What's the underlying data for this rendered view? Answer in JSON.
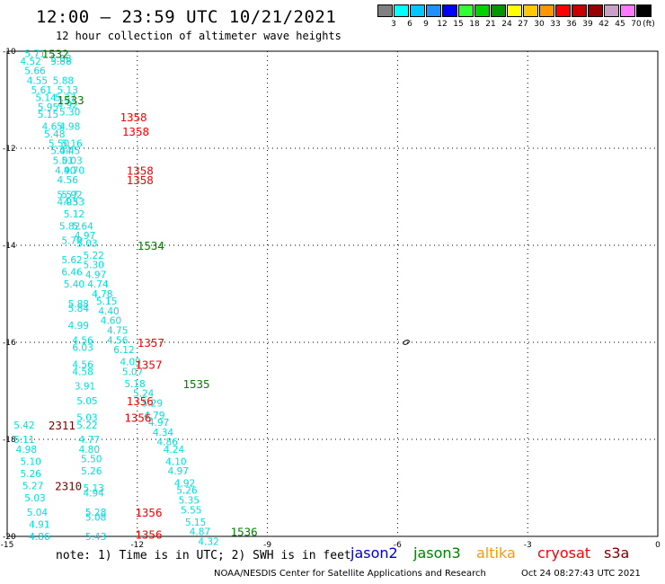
{
  "header": {
    "title": "12:00 – 23:59 UTC 10/21/2021",
    "subtitle": "12 hour collection of altimeter wave heights"
  },
  "scale": {
    "unit_label": "(ft)",
    "bins": [
      {
        "label": "",
        "color": "#808080"
      },
      {
        "label": "3",
        "color": "#00ffff"
      },
      {
        "label": "6",
        "color": "#00c8ff"
      },
      {
        "label": "9",
        "color": "#1e90ff"
      },
      {
        "label": "12",
        "color": "#0000ff"
      },
      {
        "label": "15",
        "color": "#32ff32"
      },
      {
        "label": "18",
        "color": "#00d200"
      },
      {
        "label": "21",
        "color": "#009600"
      },
      {
        "label": "24",
        "color": "#ffff00"
      },
      {
        "label": "27",
        "color": "#ffc800"
      },
      {
        "label": "30",
        "color": "#ff9600"
      },
      {
        "label": "33",
        "color": "#ff0000"
      },
      {
        "label": "36",
        "color": "#c80000"
      },
      {
        "label": "39",
        "color": "#960000"
      },
      {
        "label": "42",
        "color": "#c8a0c8"
      },
      {
        "label": "45",
        "color": "#ff78ff"
      },
      {
        "label": "70",
        "color": "#000000"
      }
    ]
  },
  "footer": {
    "note": "note: 1) Time is in UTC; 2) SWH is in feet",
    "credit": "NOAA/NESDIS Center for Satellite Applications and Research",
    "timestamp": "Oct 24 08:27:43 UTC 2021"
  },
  "satellites": [
    {
      "name": "jason2",
      "color": "#0000d0"
    },
    {
      "name": "jason3",
      "color": "#008000"
    },
    {
      "name": "altika",
      "color": "#ff9900"
    },
    {
      "name": "cryosat",
      "color": "#ff0000"
    },
    {
      "name": "s3a",
      "color": "#800000"
    }
  ],
  "chart_data": {
    "type": "scatter",
    "xlim": [
      -15,
      0
    ],
    "ylim": [
      -20,
      -10
    ],
    "x_ticks": [
      "-15",
      "-12",
      "-9",
      "-6",
      "-3",
      "0"
    ],
    "y_ticks": [
      "-10",
      "-12",
      "-14",
      "-16",
      "-18",
      "-20"
    ],
    "grid": true,
    "swh_color": "#00e0e0",
    "swh_points": [
      {
        "x": -14.6,
        "y": -10.05,
        "v": "5.71"
      },
      {
        "x": -14.0,
        "y": -10.15,
        "v": "5.03"
      },
      {
        "x": -14.7,
        "y": -10.2,
        "v": "4.52"
      },
      {
        "x": -14.0,
        "y": -10.2,
        "v": "5.88"
      },
      {
        "x": -14.6,
        "y": -10.4,
        "v": "5.66"
      },
      {
        "x": -14.55,
        "y": -10.6,
        "v": "4.55"
      },
      {
        "x": -13.95,
        "y": -10.6,
        "v": "5.88"
      },
      {
        "x": -14.45,
        "y": -10.8,
        "v": "5.61"
      },
      {
        "x": -13.85,
        "y": -10.8,
        "v": "5.13"
      },
      {
        "x": -14.35,
        "y": -10.95,
        "v": "5.14"
      },
      {
        "x": -13.9,
        "y": -10.95,
        "v": "5.37"
      },
      {
        "x": -14.3,
        "y": -11.15,
        "v": "5.95"
      },
      {
        "x": -13.85,
        "y": -11.1,
        "v": "4.92"
      },
      {
        "x": -14.3,
        "y": -11.3,
        "v": "5.15"
      },
      {
        "x": -13.8,
        "y": -11.25,
        "v": "5.30"
      },
      {
        "x": -14.2,
        "y": -11.55,
        "v": "4.65"
      },
      {
        "x": -13.8,
        "y": -11.55,
        "v": "4.98"
      },
      {
        "x": -14.15,
        "y": -11.7,
        "v": "5.48"
      },
      {
        "x": -14.05,
        "y": -11.9,
        "v": "5.50"
      },
      {
        "x": -13.75,
        "y": -11.9,
        "v": "5.16"
      },
      {
        "x": -14.0,
        "y": -12.05,
        "v": "5.04"
      },
      {
        "x": -13.8,
        "y": -12.05,
        "v": "4.45"
      },
      {
        "x": -13.95,
        "y": -12.25,
        "v": "5.01"
      },
      {
        "x": -13.75,
        "y": -12.25,
        "v": "5.03"
      },
      {
        "x": -13.9,
        "y": -12.45,
        "v": "4.90"
      },
      {
        "x": -13.7,
        "y": -12.45,
        "v": "4.70"
      },
      {
        "x": -13.85,
        "y": -12.65,
        "v": "4.56"
      },
      {
        "x": -13.85,
        "y": -12.95,
        "v": "5.57"
      },
      {
        "x": -13.75,
        "y": -12.95,
        "v": "5.92"
      },
      {
        "x": -13.85,
        "y": -13.1,
        "v": "4.93"
      },
      {
        "x": -13.7,
        "y": -13.1,
        "v": "4.53"
      },
      {
        "x": -13.7,
        "y": -13.35,
        "v": "5.12"
      },
      {
        "x": -13.8,
        "y": -13.6,
        "v": "5.82"
      },
      {
        "x": -13.5,
        "y": -13.6,
        "v": "5.64"
      },
      {
        "x": -13.45,
        "y": -13.8,
        "v": "4.97"
      },
      {
        "x": -13.75,
        "y": -13.9,
        "v": "5.79"
      },
      {
        "x": -13.4,
        "y": -13.95,
        "v": "5.03"
      },
      {
        "x": -13.25,
        "y": -14.2,
        "v": "5.22"
      },
      {
        "x": -13.75,
        "y": -14.3,
        "v": "5.62"
      },
      {
        "x": -13.25,
        "y": -14.4,
        "v": "5.30"
      },
      {
        "x": -13.75,
        "y": -14.55,
        "v": "6.46"
      },
      {
        "x": -13.2,
        "y": -14.6,
        "v": "4.97"
      },
      {
        "x": -13.7,
        "y": -14.8,
        "v": "5.40"
      },
      {
        "x": -13.15,
        "y": -14.8,
        "v": "4.74"
      },
      {
        "x": -13.05,
        "y": -15.0,
        "v": "4.78"
      },
      {
        "x": -13.6,
        "y": -15.2,
        "v": "5.88"
      },
      {
        "x": -12.95,
        "y": -15.15,
        "v": "5.15"
      },
      {
        "x": -13.6,
        "y": -15.3,
        "v": "5.84"
      },
      {
        "x": -12.9,
        "y": -15.35,
        "v": "4.40"
      },
      {
        "x": -12.85,
        "y": -15.55,
        "v": "4.60"
      },
      {
        "x": -13.6,
        "y": -15.65,
        "v": "4.99"
      },
      {
        "x": -12.7,
        "y": -15.75,
        "v": "4.75"
      },
      {
        "x": -13.5,
        "y": -15.95,
        "v": "4.56"
      },
      {
        "x": -12.7,
        "y": -15.95,
        "v": "4.56"
      },
      {
        "x": -13.5,
        "y": -16.1,
        "v": "6.03"
      },
      {
        "x": -12.55,
        "y": -16.15,
        "v": "6.12"
      },
      {
        "x": -12.4,
        "y": -16.4,
        "v": "4.09"
      },
      {
        "x": -13.5,
        "y": -16.45,
        "v": "4.56"
      },
      {
        "x": -13.5,
        "y": -16.6,
        "v": "4.58"
      },
      {
        "x": -12.35,
        "y": -16.6,
        "v": "5.07"
      },
      {
        "x": -13.45,
        "y": -16.9,
        "v": "3.91"
      },
      {
        "x": -12.3,
        "y": -16.85,
        "v": "5.18"
      },
      {
        "x": -12.1,
        "y": -17.05,
        "v": "5.24"
      },
      {
        "x": -13.4,
        "y": -17.2,
        "v": "5.05"
      },
      {
        "x": -11.9,
        "y": -17.25,
        "v": "5.29"
      },
      {
        "x": -11.85,
        "y": -17.5,
        "v": "4.79"
      },
      {
        "x": -13.4,
        "y": -17.55,
        "v": "5.03"
      },
      {
        "x": -11.75,
        "y": -17.65,
        "v": "4.97"
      },
      {
        "x": -13.4,
        "y": -17.7,
        "v": "5.22"
      },
      {
        "x": -11.65,
        "y": -17.85,
        "v": "4.34"
      },
      {
        "x": -14.85,
        "y": -17.7,
        "v": "5.42"
      },
      {
        "x": -14.85,
        "y": -18.0,
        "v": "5.11"
      },
      {
        "x": -13.35,
        "y": -18.0,
        "v": "4.77"
      },
      {
        "x": -11.55,
        "y": -18.05,
        "v": "4.86"
      },
      {
        "x": -14.8,
        "y": -18.2,
        "v": "4.98"
      },
      {
        "x": -13.35,
        "y": -18.2,
        "v": "4.80"
      },
      {
        "x": -11.4,
        "y": -18.2,
        "v": "4.24"
      },
      {
        "x": -14.7,
        "y": -18.45,
        "v": "5.10"
      },
      {
        "x": -13.3,
        "y": -18.4,
        "v": "5.50"
      },
      {
        "x": -11.35,
        "y": -18.45,
        "v": "4.10"
      },
      {
        "x": -14.7,
        "y": -18.7,
        "v": "5.26"
      },
      {
        "x": -13.3,
        "y": -18.65,
        "v": "5.26"
      },
      {
        "x": -11.3,
        "y": -18.65,
        "v": "4.97"
      },
      {
        "x": -11.15,
        "y": -18.9,
        "v": "4.92"
      },
      {
        "x": -14.65,
        "y": -18.95,
        "v": "5.27"
      },
      {
        "x": -13.25,
        "y": -19.0,
        "v": "5.13"
      },
      {
        "x": -11.1,
        "y": -19.05,
        "v": "5.26"
      },
      {
        "x": -13.25,
        "y": -19.1,
        "v": "4.94"
      },
      {
        "x": -14.6,
        "y": -19.2,
        "v": "5.03"
      },
      {
        "x": -11.05,
        "y": -19.25,
        "v": "5.35"
      },
      {
        "x": -14.55,
        "y": -19.5,
        "v": "5.04"
      },
      {
        "x": -11.0,
        "y": -19.45,
        "v": "5.55"
      },
      {
        "x": -13.2,
        "y": -19.5,
        "v": "5.28"
      },
      {
        "x": -13.2,
        "y": -19.6,
        "v": "5.08"
      },
      {
        "x": -14.5,
        "y": -19.75,
        "v": "4.91"
      },
      {
        "x": -10.9,
        "y": -19.7,
        "v": "5.15"
      },
      {
        "x": -10.8,
        "y": -19.9,
        "v": "4.87"
      },
      {
        "x": -14.5,
        "y": -20.0,
        "v": "4.86"
      },
      {
        "x": -13.2,
        "y": -20.0,
        "v": "5.43"
      },
      {
        "x": -10.6,
        "y": -20.1,
        "v": "4.32"
      }
    ],
    "time_labels": [
      {
        "x": -14.2,
        "y": -10.05,
        "t": "1532",
        "sat": "jason3"
      },
      {
        "x": -13.85,
        "y": -11.0,
        "t": "1533",
        "sat": "jason3"
      },
      {
        "x": -12.4,
        "y": -11.35,
        "t": "1358",
        "sat": "cryosat"
      },
      {
        "x": -12.35,
        "y": -11.65,
        "t": "1358",
        "sat": "cryosat"
      },
      {
        "x": -12.25,
        "y": -12.45,
        "t": "1358",
        "sat": "cryosat"
      },
      {
        "x": -12.25,
        "y": -12.65,
        "t": "1358",
        "sat": "cryosat"
      },
      {
        "x": -12.0,
        "y": -14.0,
        "t": "1534",
        "sat": "jason3"
      },
      {
        "x": -12.0,
        "y": -16.0,
        "t": "1357",
        "sat": "cryosat"
      },
      {
        "x": -12.05,
        "y": -16.45,
        "t": "1357",
        "sat": "cryosat"
      },
      {
        "x": -10.95,
        "y": -16.85,
        "t": "1535",
        "sat": "jason3"
      },
      {
        "x": -12.25,
        "y": -17.2,
        "t": "1356",
        "sat": "cryosat"
      },
      {
        "x": -12.3,
        "y": -17.55,
        "t": "1356",
        "sat": "cryosat"
      },
      {
        "x": -14.05,
        "y": -17.7,
        "t": "2311",
        "sat": "s3a"
      },
      {
        "x": -13.9,
        "y": -18.95,
        "t": "2310",
        "sat": "s3a"
      },
      {
        "x": -12.05,
        "y": -19.5,
        "t": "1356",
        "sat": "cryosat"
      },
      {
        "x": -12.05,
        "y": -19.95,
        "t": "1356",
        "sat": "cryosat"
      },
      {
        "x": -9.85,
        "y": -19.9,
        "t": "1536",
        "sat": "jason3"
      }
    ],
    "island": {
      "x": -5.8,
      "y": -16.0
    }
  }
}
